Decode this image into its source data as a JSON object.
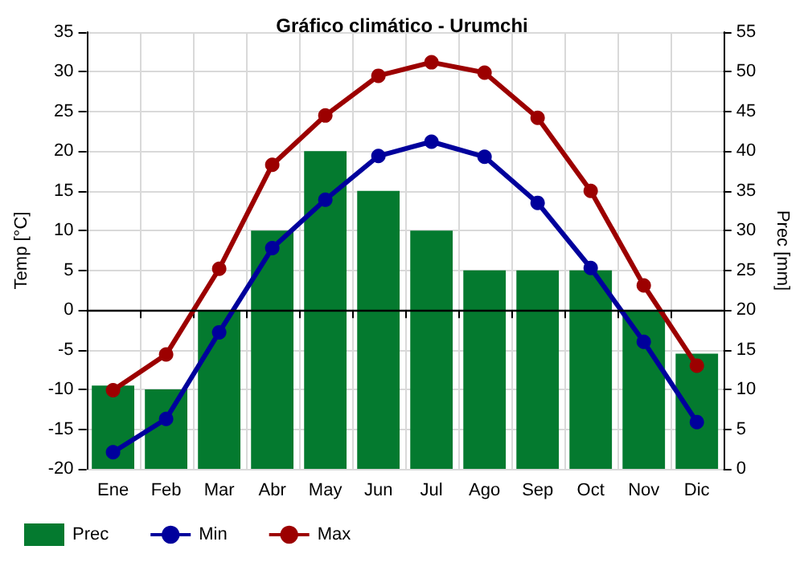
{
  "chart_data": {
    "type": "bar",
    "title": "Gráfico climático - Urumchi",
    "ylabel": "Temp [°C]",
    "y2label": "Prec [mm]",
    "categories": [
      "Ene",
      "Feb",
      "Mar",
      "Abr",
      "May",
      "Jun",
      "Jul",
      "Ago",
      "Sep",
      "Oct",
      "Nov",
      "Dic"
    ],
    "series": [
      {
        "name": "Prec",
        "axis": "y2",
        "color": "#047a2f",
        "values": [
          10.5,
          10,
          20,
          30,
          40,
          35,
          30,
          25,
          25,
          25,
          20,
          14.5
        ]
      },
      {
        "name": "Min",
        "type": "line",
        "color": "#00009c",
        "values": [
          -17.9,
          -13.7,
          -2.8,
          7.8,
          13.9,
          19.4,
          21.2,
          19.3,
          13.5,
          5.3,
          -4.0,
          -14.1
        ]
      },
      {
        "name": "Max",
        "type": "line",
        "color": "#9c0000",
        "values": [
          -10.1,
          -5.6,
          5.2,
          18.3,
          24.5,
          29.5,
          31.2,
          29.9,
          24.2,
          15.0,
          3.1,
          -7.0
        ]
      }
    ],
    "ylim": [
      -20,
      35
    ],
    "yticks": [
      -20,
      -15,
      -10,
      -5,
      0,
      5,
      10,
      15,
      20,
      25,
      30,
      35
    ],
    "y2lim": [
      0,
      55
    ],
    "y2ticks": [
      0,
      5,
      10,
      15,
      20,
      25,
      30,
      35,
      40,
      45,
      50,
      55
    ],
    "ref_lines": [
      {
        "axis": "y",
        "value": 0,
        "color": "#000000"
      }
    ],
    "grid": true,
    "legend": "bottom left",
    "marker": "circle",
    "line_style": "solid"
  }
}
